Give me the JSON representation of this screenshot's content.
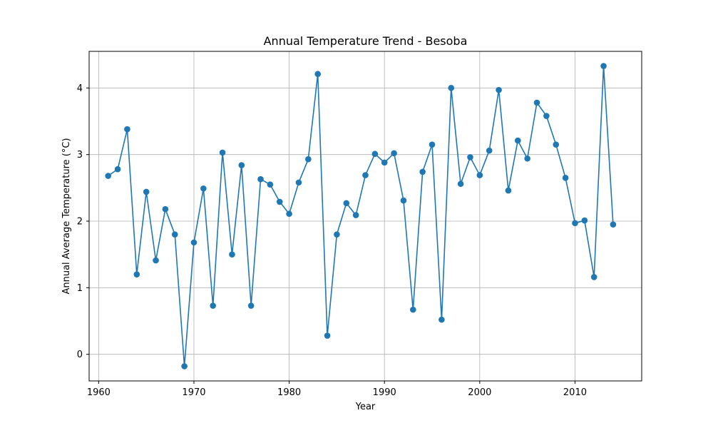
{
  "chart_data": {
    "type": "line",
    "title": "Annual Temperature Trend - Besoba",
    "xlabel": "Year",
    "ylabel": "Annual Average Temperature (°C)",
    "xlim": [
      1959,
      2017
    ],
    "ylim": [
      -0.4,
      4.55
    ],
    "xticks": [
      1960,
      1970,
      1980,
      1990,
      2000,
      2010
    ],
    "xtick_labels": [
      "1960",
      "1970",
      "1980",
      "1990",
      "2000",
      "2010"
    ],
    "yticks": [
      0,
      1,
      2,
      3,
      4
    ],
    "ytick_labels": [
      "0",
      "1",
      "2",
      "3",
      "4"
    ],
    "grid": true,
    "series_color": "#1f77b4",
    "series": [
      {
        "marker": "circle",
        "x": [
          1961,
          1962,
          1963,
          1964,
          1965,
          1966,
          1967,
          1968,
          1969,
          1970,
          1971,
          1972,
          1973,
          1974,
          1975,
          1976,
          1977,
          1978,
          1979,
          1980,
          1981,
          1982,
          1983,
          1984,
          1985,
          1986,
          1987,
          1988,
          1989,
          1990,
          1991,
          1992,
          1993,
          1994,
          1995,
          1996,
          1997,
          1998,
          1999,
          2000,
          2001,
          2002,
          2003,
          2004,
          2005,
          2006,
          2007,
          2008,
          2009,
          2010,
          2011,
          2012,
          2013,
          2014
        ],
        "y": [
          2.68,
          2.78,
          3.38,
          1.2,
          2.44,
          1.41,
          2.18,
          1.8,
          -0.18,
          1.68,
          2.49,
          0.73,
          3.03,
          1.5,
          2.84,
          0.73,
          2.63,
          2.55,
          2.29,
          2.11,
          2.58,
          2.93,
          4.21,
          0.28,
          1.8,
          2.27,
          2.09,
          2.69,
          3.01,
          2.88,
          3.02,
          2.31,
          0.67,
          2.74,
          3.15,
          0.52,
          4.0,
          2.56,
          2.96,
          2.69,
          3.06,
          3.97,
          2.46,
          3.21,
          2.94,
          3.78,
          3.58,
          3.15,
          2.65,
          1.97,
          2.01,
          1.16,
          4.33,
          1.95
        ]
      }
    ]
  }
}
